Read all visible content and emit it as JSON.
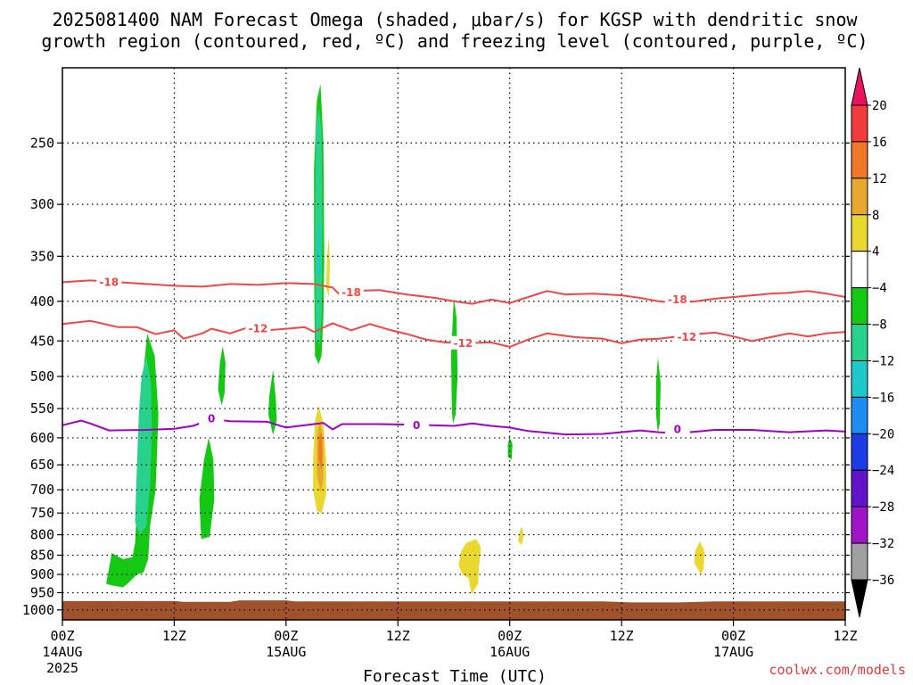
{
  "chart_data": {
    "type": "heatmap",
    "title_lines": [
      "2025081400 NAM Forecast Omega (shaded, μbar/s) for KGSP with dendritic snow",
      "growth region (contoured, red, ºC) and freezing level (contoured, purple, ºC)"
    ],
    "xlabel": "Forecast Time (UTC)",
    "ylabel": "",
    "credit": "coolwx.com/models",
    "x_range_hours": [
      0,
      84
    ],
    "y_range_hpa": [
      1030,
      200
    ],
    "x_ticks": [
      {
        "hour": 0,
        "label": "00Z",
        "date": "14AUG",
        "year": "2025"
      },
      {
        "hour": 12,
        "label": "12Z",
        "date": "",
        "year": ""
      },
      {
        "hour": 24,
        "label": "00Z",
        "date": "15AUG",
        "year": ""
      },
      {
        "hour": 36,
        "label": "12Z",
        "date": "",
        "year": ""
      },
      {
        "hour": 48,
        "label": "00Z",
        "date": "16AUG",
        "year": ""
      },
      {
        "hour": 60,
        "label": "12Z",
        "date": "",
        "year": ""
      },
      {
        "hour": 72,
        "label": "00Z",
        "date": "17AUG",
        "year": ""
      },
      {
        "hour": 84,
        "label": "12Z",
        "date": "",
        "year": ""
      }
    ],
    "y_ticks": [
      250,
      300,
      350,
      400,
      450,
      500,
      550,
      600,
      650,
      700,
      750,
      800,
      850,
      900,
      950,
      1000
    ],
    "colorbar": {
      "levels": [
        "20",
        "16",
        "12",
        "8",
        "4",
        "−4",
        "−8",
        "−12",
        "−16",
        "−20",
        "−24",
        "−28",
        "−32",
        "−36"
      ],
      "colors": [
        "#e8125f",
        "#f03c3c",
        "#f07828",
        "#e8a830",
        "#e8d830",
        "#ffffff",
        "#14c814",
        "#28d28c",
        "#1ec8c8",
        "#1e8cf0",
        "#1e3ce6",
        "#6414c8",
        "#a014c8",
        "#a0a0a0",
        "#000000"
      ]
    },
    "grid": true,
    "terrain_color": "#a0522d",
    "contours": [
      {
        "name": "-18",
        "color": "#f04646",
        "labels": [
          {
            "hour": 5,
            "hpa": 378
          },
          {
            "hour": 31,
            "hpa": 390
          },
          {
            "hour": 66,
            "hpa": 398
          }
        ],
        "points": [
          [
            0,
            378
          ],
          [
            3,
            376
          ],
          [
            6,
            378
          ],
          [
            9,
            380
          ],
          [
            12,
            382
          ],
          [
            15,
            383
          ],
          [
            18,
            380
          ],
          [
            21,
            381
          ],
          [
            24,
            379
          ],
          [
            27,
            380
          ],
          [
            29,
            384
          ],
          [
            30,
            395
          ],
          [
            31,
            388
          ],
          [
            34,
            387
          ],
          [
            37,
            392
          ],
          [
            40,
            396
          ],
          [
            42,
            400
          ],
          [
            44,
            403
          ],
          [
            46,
            398
          ],
          [
            48,
            402
          ],
          [
            50,
            395
          ],
          [
            52,
            388
          ],
          [
            54,
            392
          ],
          [
            57,
            391
          ],
          [
            60,
            393
          ],
          [
            62,
            396
          ],
          [
            64,
            400
          ],
          [
            66,
            402
          ],
          [
            68,
            400
          ],
          [
            70,
            397
          ],
          [
            73,
            394
          ],
          [
            76,
            391
          ],
          [
            78,
            390
          ],
          [
            80,
            388
          ],
          [
            82,
            391
          ],
          [
            84,
            395
          ]
        ]
      },
      {
        "name": "-12",
        "color": "#f04646",
        "labels": [
          {
            "hour": 21,
            "hpa": 434
          },
          {
            "hour": 43,
            "hpa": 453
          },
          {
            "hour": 67,
            "hpa": 445
          }
        ],
        "points": [
          [
            0,
            428
          ],
          [
            3,
            424
          ],
          [
            6,
            432
          ],
          [
            8,
            432
          ],
          [
            10,
            441
          ],
          [
            12,
            436
          ],
          [
            13,
            447
          ],
          [
            15,
            440
          ],
          [
            16,
            434
          ],
          [
            18,
            440
          ],
          [
            20,
            432
          ],
          [
            22,
            436
          ],
          [
            24,
            434
          ],
          [
            26,
            432
          ],
          [
            27,
            438
          ],
          [
            29,
            427
          ],
          [
            31,
            436
          ],
          [
            33,
            428
          ],
          [
            35,
            435
          ],
          [
            37,
            441
          ],
          [
            39,
            448
          ],
          [
            41,
            452
          ],
          [
            43,
            453
          ],
          [
            46,
            452
          ],
          [
            48,
            458
          ],
          [
            50,
            448
          ],
          [
            52,
            440
          ],
          [
            55,
            445
          ],
          [
            58,
            447
          ],
          [
            60,
            453
          ],
          [
            62,
            448
          ],
          [
            64,
            447
          ],
          [
            66,
            444
          ],
          [
            68,
            441
          ],
          [
            70,
            439
          ],
          [
            72,
            444
          ],
          [
            74,
            450
          ],
          [
            76,
            445
          ],
          [
            78,
            440
          ],
          [
            80,
            444
          ],
          [
            82,
            440
          ],
          [
            84,
            438
          ]
        ]
      },
      {
        "name": "0",
        "color": "#a000c8",
        "labels": [
          {
            "hour": 16,
            "hpa": 567
          },
          {
            "hour": 38,
            "hpa": 578
          },
          {
            "hour": 66,
            "hpa": 585
          }
        ],
        "points": [
          [
            0,
            578
          ],
          [
            2,
            570
          ],
          [
            3,
            575
          ],
          [
            5,
            587
          ],
          [
            9,
            586
          ],
          [
            12,
            584
          ],
          [
            14,
            579
          ],
          [
            16,
            568
          ],
          [
            18,
            571
          ],
          [
            22,
            572
          ],
          [
            24,
            582
          ],
          [
            26,
            578
          ],
          [
            28,
            574
          ],
          [
            29,
            585
          ],
          [
            30,
            576
          ],
          [
            34,
            576
          ],
          [
            38,
            577
          ],
          [
            42,
            579
          ],
          [
            44,
            575
          ],
          [
            46,
            579
          ],
          [
            48,
            582
          ],
          [
            50,
            588
          ],
          [
            54,
            594
          ],
          [
            58,
            593
          ],
          [
            62,
            587
          ],
          [
            64,
            590
          ],
          [
            66,
            592
          ],
          [
            70,
            586
          ],
          [
            74,
            586
          ],
          [
            78,
            590
          ],
          [
            82,
            587
          ],
          [
            84,
            589
          ]
        ]
      }
    ],
    "shaded_regions": [
      {
        "color": "#14c814",
        "points": [
          [
            4.7,
            925
          ],
          [
            5.3,
            845
          ],
          [
            6.5,
            860
          ],
          [
            7.5,
            855
          ],
          [
            7.8,
            820
          ],
          [
            8.1,
            700
          ],
          [
            8.3,
            600
          ],
          [
            8.5,
            520
          ],
          [
            9.1,
            440
          ],
          [
            9.9,
            470
          ],
          [
            10.3,
            560
          ],
          [
            10.0,
            700
          ],
          [
            9.4,
            780
          ],
          [
            9.2,
            860
          ],
          [
            8.7,
            895
          ],
          [
            8.0,
            900
          ],
          [
            7.0,
            925
          ],
          [
            6.5,
            935
          ],
          [
            5.3,
            930
          ]
        ]
      },
      {
        "color": "#28d28c",
        "points": [
          [
            7.8,
            770
          ],
          [
            8.0,
            650
          ],
          [
            8.2,
            560
          ],
          [
            8.5,
            500
          ],
          [
            9.0,
            470
          ],
          [
            9.5,
            510
          ],
          [
            9.6,
            590
          ],
          [
            9.4,
            690
          ],
          [
            9.0,
            780
          ],
          [
            8.3,
            800
          ]
        ]
      },
      {
        "color": "#14c814",
        "points": [
          [
            14.9,
            810
          ],
          [
            14.7,
            720
          ],
          [
            15.2,
            640
          ],
          [
            15.7,
            600
          ],
          [
            16.2,
            640
          ],
          [
            16.3,
            720
          ],
          [
            15.8,
            805
          ]
        ]
      },
      {
        "color": "#14c814",
        "points": [
          [
            16.7,
            520
          ],
          [
            16.9,
            480
          ],
          [
            17.2,
            457
          ],
          [
            17.5,
            480
          ],
          [
            17.4,
            525
          ],
          [
            17.1,
            545
          ]
        ]
      },
      {
        "color": "#14c814",
        "points": [
          [
            22.1,
            560
          ],
          [
            22.2,
            530
          ],
          [
            22.6,
            490
          ],
          [
            22.9,
            535
          ],
          [
            23.0,
            570
          ],
          [
            22.6,
            595
          ]
        ]
      },
      {
        "color": "#14c814",
        "points": [
          [
            27.1,
            470
          ],
          [
            27.0,
            360
          ],
          [
            27.0,
            270
          ],
          [
            27.3,
            220
          ],
          [
            27.7,
            210
          ],
          [
            28.0,
            250
          ],
          [
            28.1,
            350
          ],
          [
            28.0,
            420
          ],
          [
            27.8,
            470
          ],
          [
            27.5,
            482
          ]
        ]
      },
      {
        "color": "#28d28c",
        "points": [
          [
            27.2,
            450
          ],
          [
            27.1,
            340
          ],
          [
            27.2,
            240
          ],
          [
            27.5,
            225
          ],
          [
            27.8,
            240
          ],
          [
            27.9,
            320
          ],
          [
            27.8,
            420
          ],
          [
            27.6,
            455
          ]
        ]
      },
      {
        "color": "#1ec8c8",
        "points": [
          [
            27.3,
            360
          ],
          [
            27.4,
            320
          ],
          [
            27.6,
            318
          ],
          [
            27.7,
            360
          ],
          [
            27.6,
            375
          ],
          [
            27.4,
            372
          ]
        ]
      },
      {
        "color": "#e8d830",
        "points": [
          [
            28.3,
            385
          ],
          [
            28.4,
            350
          ],
          [
            28.6,
            330
          ],
          [
            28.7,
            360
          ],
          [
            28.6,
            395
          ]
        ]
      },
      {
        "color": "#e8d830",
        "points": [
          [
            26.9,
            700
          ],
          [
            26.9,
            640
          ],
          [
            27.1,
            570
          ],
          [
            27.5,
            545
          ],
          [
            28.0,
            575
          ],
          [
            28.3,
            640
          ],
          [
            28.3,
            710
          ],
          [
            27.8,
            750
          ],
          [
            27.3,
            745
          ]
        ]
      },
      {
        "color": "#e8a830",
        "points": [
          [
            27.3,
            670
          ],
          [
            27.3,
            600
          ],
          [
            27.6,
            570
          ],
          [
            28.0,
            600
          ],
          [
            28.0,
            680
          ],
          [
            27.7,
            705
          ]
        ]
      },
      {
        "color": "#f07828",
        "points": [
          [
            27.5,
            640
          ],
          [
            27.5,
            600
          ],
          [
            27.8,
            590
          ],
          [
            27.9,
            630
          ],
          [
            27.8,
            660
          ]
        ]
      },
      {
        "color": "#14c814",
        "points": [
          [
            41.8,
            555
          ],
          [
            41.7,
            470
          ],
          [
            42.0,
            395
          ],
          [
            42.3,
            420
          ],
          [
            42.4,
            500
          ],
          [
            42.2,
            560
          ],
          [
            41.9,
            575
          ]
        ]
      },
      {
        "color": "#e8d830",
        "points": [
          [
            42.5,
            875
          ],
          [
            42.8,
            840
          ],
          [
            43.3,
            820
          ],
          [
            44.4,
            810
          ],
          [
            44.9,
            830
          ],
          [
            44.7,
            880
          ],
          [
            44.6,
            925
          ],
          [
            43.9,
            955
          ],
          [
            43.6,
            910
          ],
          [
            42.9,
            900
          ]
        ]
      },
      {
        "color": "#14c814",
        "points": [
          [
            47.8,
            635
          ],
          [
            47.8,
            612
          ],
          [
            48.0,
            598
          ],
          [
            48.3,
            612
          ],
          [
            48.2,
            640
          ]
        ]
      },
      {
        "color": "#e8d830",
        "points": [
          [
            48.9,
            815
          ],
          [
            49.1,
            790
          ],
          [
            49.3,
            780
          ],
          [
            49.5,
            800
          ],
          [
            49.3,
            825
          ]
        ]
      },
      {
        "color": "#14c814",
        "points": [
          [
            63.7,
            560
          ],
          [
            63.7,
            510
          ],
          [
            63.9,
            472
          ],
          [
            64.2,
            510
          ],
          [
            64.1,
            575
          ],
          [
            63.9,
            590
          ]
        ]
      },
      {
        "color": "#e8d830",
        "points": [
          [
            67.8,
            870
          ],
          [
            67.9,
            840
          ],
          [
            68.4,
            815
          ],
          [
            68.9,
            840
          ],
          [
            68.8,
            885
          ],
          [
            68.5,
            900
          ]
        ]
      }
    ]
  }
}
